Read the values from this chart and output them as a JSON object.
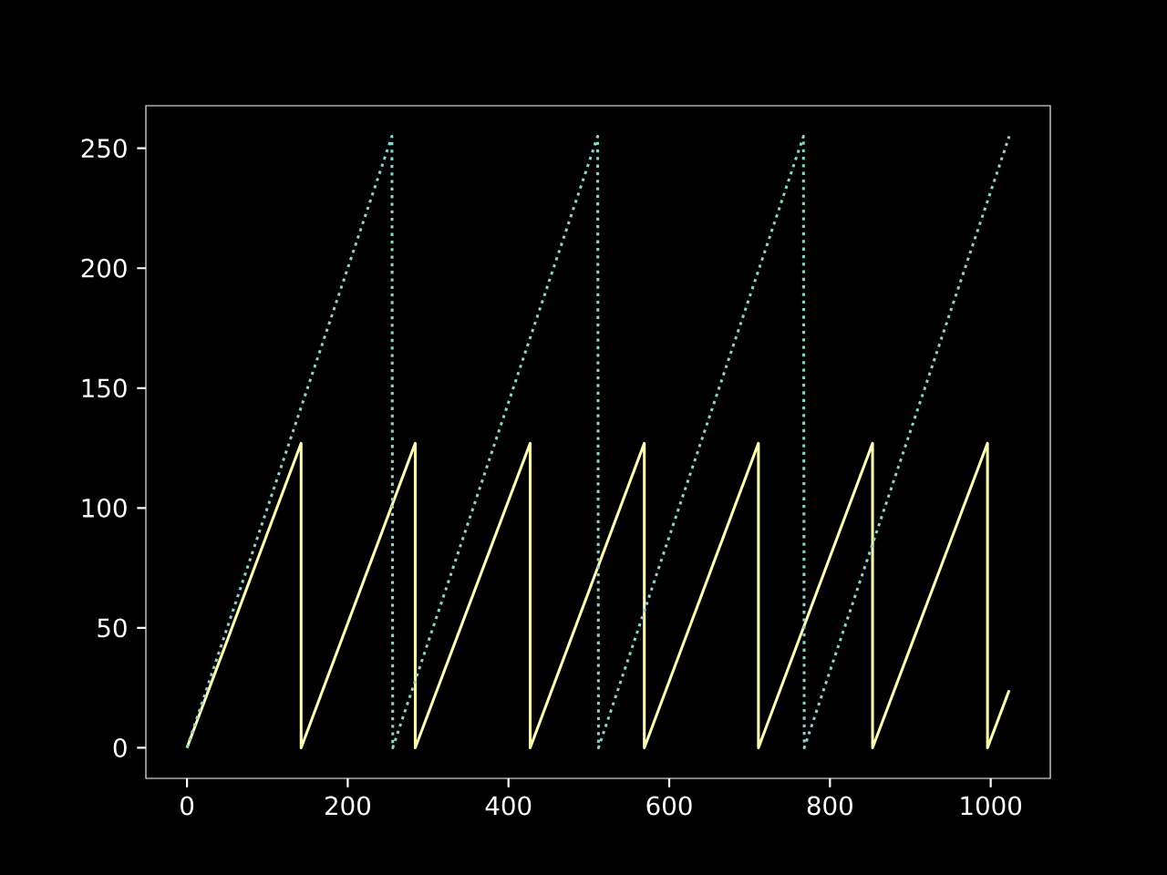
{
  "chart_data": {
    "type": "line",
    "xlim": [
      -51.15,
      1074.15
    ],
    "ylim": [
      -12.75,
      267.75
    ],
    "xticks": [
      0,
      200,
      400,
      600,
      800,
      1000
    ],
    "yticks": [
      0,
      50,
      100,
      150,
      200,
      250
    ],
    "grid": false,
    "legend": false,
    "marker": "none",
    "series": [
      {
        "color": "#8dd3c7",
        "line_style": "dotted",
        "x": [
          0,
          255,
          256,
          511,
          512,
          767,
          768,
          1023
        ],
        "values": [
          0,
          255,
          0,
          255,
          0,
          255,
          0,
          255
        ]
      },
      {
        "color": "#feffb3",
        "line_style": "solid",
        "x": [
          0,
          142,
          142,
          284,
          284,
          427,
          427,
          569,
          569,
          711,
          711,
          853,
          853,
          996,
          996,
          1023
        ],
        "values": [
          0,
          127,
          0,
          127,
          0,
          127,
          0,
          127,
          0,
          127,
          0,
          127,
          0,
          127,
          0,
          24
        ]
      }
    ]
  }
}
